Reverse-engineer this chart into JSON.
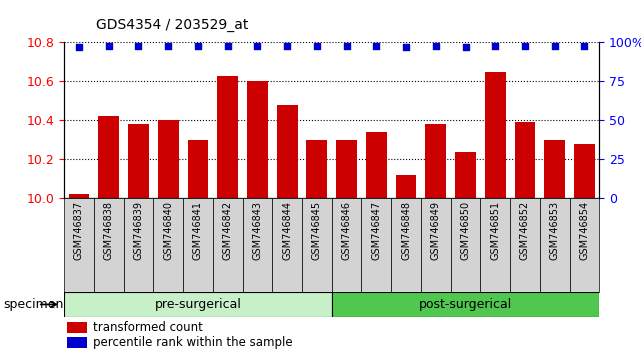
{
  "title": "GDS4354 / 203529_at",
  "categories": [
    "GSM746837",
    "GSM746838",
    "GSM746839",
    "GSM746840",
    "GSM746841",
    "GSM746842",
    "GSM746843",
    "GSM746844",
    "GSM746845",
    "GSM746846",
    "GSM746847",
    "GSM746848",
    "GSM746849",
    "GSM746850",
    "GSM746851",
    "GSM746852",
    "GSM746853",
    "GSM746854"
  ],
  "bar_values": [
    10.02,
    10.42,
    10.38,
    10.4,
    10.3,
    10.63,
    10.6,
    10.48,
    10.3,
    10.3,
    10.34,
    10.12,
    10.38,
    10.24,
    10.65,
    10.39,
    10.3,
    10.28
  ],
  "percentile_values": [
    97,
    98,
    98,
    98,
    98,
    98,
    98,
    98,
    98,
    98,
    98,
    97,
    98,
    97,
    98,
    98,
    98,
    98
  ],
  "bar_color": "#cc0000",
  "percentile_color": "#0000cc",
  "ylim_left": [
    10.0,
    10.8
  ],
  "ylim_right": [
    0,
    100
  ],
  "yticks_left": [
    10.0,
    10.2,
    10.4,
    10.6,
    10.8
  ],
  "yticks_right": [
    0,
    25,
    50,
    75,
    100
  ],
  "pre_surgical_count": 9,
  "post_surgical_count": 9,
  "pre_surgical_label": "pre-surgerical",
  "post_surgical_label": "post-surgerical",
  "specimen_label": "specimen",
  "legend_bar_label": "transformed count",
  "legend_pct_label": "percentile rank within the sample",
  "background_color": "#ffffff",
  "plot_bg_color": "#ffffff",
  "xticklabel_bg": "#d3d3d3",
  "pre_color": "#c8f0c8",
  "post_color": "#50c850"
}
